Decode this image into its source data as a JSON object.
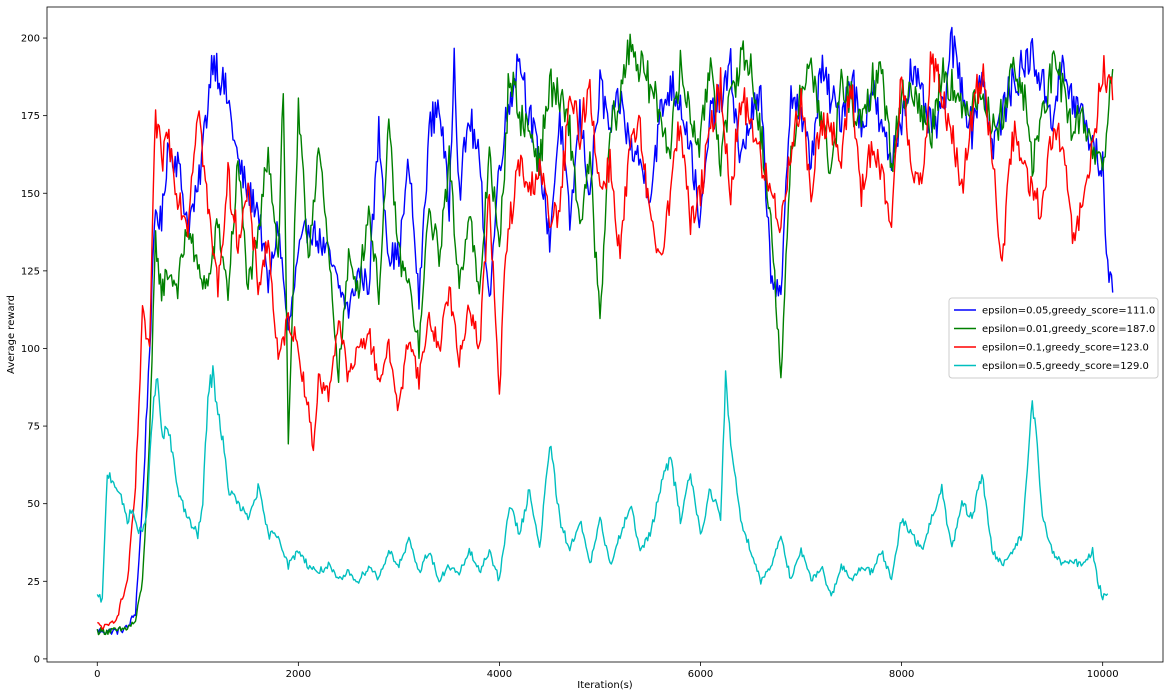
{
  "chart_data": {
    "type": "line",
    "title": "",
    "xlabel": "Iteration(s)",
    "ylabel": "Average reward",
    "xlim": [
      -500,
      10600
    ],
    "ylim": [
      -1,
      210
    ],
    "x_ticks": [
      0,
      2000,
      4000,
      6000,
      8000,
      10000
    ],
    "y_ticks": [
      0,
      25,
      50,
      75,
      100,
      125,
      150,
      175,
      200
    ],
    "grid": false,
    "legend_position": "center-right",
    "series": [
      {
        "name": "epsilon=0.05,greedy_score=111.0",
        "color": "#0000ff",
        "x": [
          0,
          200,
          300,
          380,
          450,
          520,
          580,
          640,
          700,
          800,
          900,
          1000,
          1100,
          1150,
          1200,
          1300,
          1400,
          1500,
          1600,
          1700,
          1800,
          1900,
          2000,
          2100,
          2200,
          2300,
          2400,
          2500,
          2600,
          2700,
          2800,
          2900,
          3000,
          3100,
          3200,
          3300,
          3400,
          3500,
          3550,
          3600,
          3700,
          3800,
          3900,
          4000,
          4100,
          4200,
          4300,
          4400,
          4500,
          4600,
          4700,
          4800,
          4900,
          5000,
          5100,
          5200,
          5300,
          5400,
          5500,
          5600,
          5700,
          5800,
          5900,
          6000,
          6100,
          6200,
          6300,
          6400,
          6500,
          6600,
          6700,
          6800,
          6900,
          7000,
          7100,
          7200,
          7300,
          7400,
          7500,
          7600,
          7700,
          7800,
          7900,
          8000,
          8100,
          8200,
          8300,
          8400,
          8500,
          8600,
          8700,
          8800,
          8900,
          9000,
          9100,
          9200,
          9300,
          9400,
          9500,
          9600,
          9700,
          9800,
          9900,
          10000,
          10050,
          10100
        ],
        "y": [
          9,
          9,
          10,
          15,
          50,
          100,
          145,
          140,
          165,
          160,
          140,
          150,
          180,
          195,
          190,
          180,
          160,
          150,
          145,
          120,
          140,
          105,
          130,
          140,
          135,
          130,
          120,
          112,
          125,
          120,
          170,
          130,
          130,
          160,
          115,
          170,
          180,
          145,
          198,
          150,
          175,
          160,
          115,
          160,
          180,
          195,
          175,
          160,
          135,
          175,
          140,
          175,
          150,
          185,
          170,
          180,
          165,
          160,
          150,
          175,
          185,
          180,
          165,
          140,
          175,
          180,
          190,
          160,
          175,
          180,
          125,
          115,
          185,
          175,
          160,
          190,
          180,
          175,
          190,
          170,
          185,
          170,
          160,
          175,
          190,
          180,
          170,
          175,
          198,
          185,
          170,
          190,
          165,
          175,
          185,
          190,
          195,
          185,
          175,
          190,
          180,
          175,
          165,
          158,
          125,
          118
        ]
      },
      {
        "name": "epsilon=0.01,greedy_score=187.0",
        "color": "#008000",
        "x": [
          0,
          200,
          300,
          380,
          450,
          520,
          580,
          640,
          700,
          800,
          900,
          1000,
          1100,
          1200,
          1300,
          1400,
          1500,
          1600,
          1700,
          1800,
          1850,
          1900,
          2000,
          2100,
          2200,
          2300,
          2400,
          2500,
          2600,
          2700,
          2800,
          2900,
          3000,
          3100,
          3200,
          3300,
          3400,
          3500,
          3600,
          3700,
          3800,
          3900,
          4000,
          4100,
          4200,
          4300,
          4400,
          4500,
          4600,
          4700,
          4800,
          4900,
          5000,
          5100,
          5200,
          5300,
          5400,
          5500,
          5600,
          5700,
          5800,
          5900,
          6000,
          6100,
          6200,
          6300,
          6400,
          6500,
          6600,
          6700,
          6800,
          6900,
          7000,
          7100,
          7200,
          7300,
          7400,
          7500,
          7600,
          7700,
          7800,
          7900,
          8000,
          8100,
          8200,
          8300,
          8400,
          8500,
          8600,
          8700,
          8800,
          8900,
          9000,
          9100,
          9200,
          9300,
          9400,
          9500,
          9600,
          9700,
          9800,
          9900,
          10000,
          10100
        ],
        "y": [
          9,
          9,
          10,
          12,
          25,
          70,
          135,
          118,
          125,
          120,
          140,
          125,
          120,
          140,
          118,
          160,
          120,
          135,
          165,
          130,
          185,
          70,
          175,
          130,
          165,
          130,
          92,
          128,
          120,
          145,
          118,
          170,
          130,
          120,
          100,
          145,
          130,
          160,
          120,
          145,
          115,
          165,
          130,
          190,
          175,
          170,
          160,
          185,
          180,
          170,
          140,
          160,
          108,
          170,
          180,
          200,
          190,
          185,
          175,
          165,
          190,
          175,
          165,
          195,
          160,
          180,
          195,
          190,
          170,
          140,
          92,
          160,
          185,
          190,
          175,
          155,
          185,
          180,
          170,
          185,
          190,
          160,
          180,
          185,
          175,
          170,
          190,
          185,
          175,
          180,
          185,
          170,
          175,
          190,
          185,
          160,
          175,
          190,
          185,
          170,
          175,
          165,
          158,
          190
        ]
      },
      {
        "name": "epsilon=0.1,greedy_score=123.0",
        "color": "#ff0000",
        "x": [
          0,
          100,
          200,
          300,
          380,
          450,
          520,
          580,
          640,
          700,
          800,
          900,
          1000,
          1100,
          1200,
          1300,
          1400,
          1500,
          1600,
          1700,
          1800,
          1900,
          2000,
          2100,
          2150,
          2200,
          2300,
          2400,
          2500,
          2600,
          2700,
          2800,
          2900,
          3000,
          3100,
          3200,
          3300,
          3400,
          3500,
          3600,
          3700,
          3800,
          3900,
          4000,
          4050,
          4100,
          4200,
          4300,
          4400,
          4500,
          4600,
          4700,
          4800,
          4900,
          5000,
          5100,
          5200,
          5300,
          5400,
          5500,
          5600,
          5700,
          5800,
          5900,
          6000,
          6100,
          6200,
          6300,
          6400,
          6500,
          6600,
          6700,
          6800,
          6900,
          7000,
          7100,
          7200,
          7300,
          7400,
          7500,
          7600,
          7700,
          7800,
          7900,
          8000,
          8100,
          8200,
          8300,
          8400,
          8500,
          8600,
          8700,
          8800,
          8900,
          9000,
          9100,
          9200,
          9300,
          9400,
          9500,
          9600,
          9700,
          9800,
          9900,
          10000,
          10100
        ],
        "y": [
          11,
          10,
          14,
          25,
          55,
          110,
          100,
          175,
          160,
          170,
          150,
          140,
          180,
          145,
          120,
          155,
          135,
          150,
          120,
          135,
          95,
          110,
          100,
          80,
          68,
          90,
          85,
          110,
          90,
          100,
          105,
          90,
          100,
          80,
          105,
          90,
          110,
          100,
          120,
          95,
          115,
          100,
          150,
          83,
          125,
          140,
          160,
          150,
          160,
          140,
          145,
          180,
          170,
          185,
          150,
          160,
          130,
          165,
          170,
          140,
          130,
          150,
          175,
          140,
          150,
          170,
          185,
          150,
          180,
          175,
          160,
          150,
          140,
          165,
          180,
          150,
          175,
          170,
          160,
          185,
          150,
          165,
          155,
          140,
          190,
          160,
          150,
          195,
          180,
          170,
          150,
          175,
          190,
          165,
          125,
          170,
          160,
          150,
          145,
          170,
          165,
          135,
          145,
          165,
          190,
          180
        ]
      },
      {
        "name": "epsilon=0.5,greedy_score=129.0",
        "color": "#00bfbf",
        "x": [
          0,
          50,
          100,
          150,
          200,
          250,
          300,
          350,
          400,
          450,
          500,
          550,
          600,
          650,
          700,
          800,
          900,
          1000,
          1050,
          1100,
          1150,
          1200,
          1250,
          1300,
          1400,
          1500,
          1600,
          1700,
          1800,
          1900,
          2000,
          2100,
          2200,
          2300,
          2400,
          2500,
          2600,
          2700,
          2800,
          2900,
          3000,
          3100,
          3200,
          3300,
          3400,
          3500,
          3600,
          3700,
          3800,
          3900,
          4000,
          4100,
          4200,
          4300,
          4400,
          4500,
          4600,
          4700,
          4800,
          4900,
          5000,
          5100,
          5200,
          5300,
          5400,
          5500,
          5600,
          5700,
          5800,
          5900,
          6000,
          6100,
          6200,
          6250,
          6300,
          6400,
          6500,
          6600,
          6700,
          6800,
          6900,
          7000,
          7100,
          7200,
          7300,
          7400,
          7500,
          7600,
          7700,
          7800,
          7900,
          8000,
          8100,
          8200,
          8300,
          8400,
          8500,
          8600,
          8700,
          8800,
          8900,
          9000,
          9100,
          9200,
          9300,
          9350,
          9400,
          9500,
          9600,
          9700,
          9800,
          9900,
          9950,
          10000,
          10050
        ],
        "y": [
          20,
          19,
          60,
          58,
          55,
          50,
          45,
          48,
          42,
          40,
          50,
          80,
          90,
          70,
          75,
          55,
          45,
          40,
          50,
          85,
          92,
          80,
          70,
          55,
          50,
          45,
          55,
          40,
          40,
          30,
          35,
          30,
          28,
          30,
          25,
          28,
          25,
          30,
          26,
          35,
          30,
          38,
          28,
          35,
          25,
          30,
          27,
          35,
          28,
          35,
          25,
          50,
          40,
          55,
          35,
          70,
          45,
          35,
          45,
          30,
          45,
          30,
          40,
          50,
          35,
          40,
          55,
          65,
          45,
          60,
          40,
          55,
          45,
          90,
          70,
          45,
          35,
          25,
          30,
          40,
          25,
          35,
          25,
          30,
          20,
          30,
          25,
          30,
          28,
          35,
          25,
          45,
          40,
          35,
          45,
          55,
          35,
          50,
          45,
          60,
          35,
          30,
          35,
          40,
          82,
          70,
          45,
          35,
          30,
          32,
          30,
          35,
          25,
          20,
          21
        ]
      }
    ]
  }
}
